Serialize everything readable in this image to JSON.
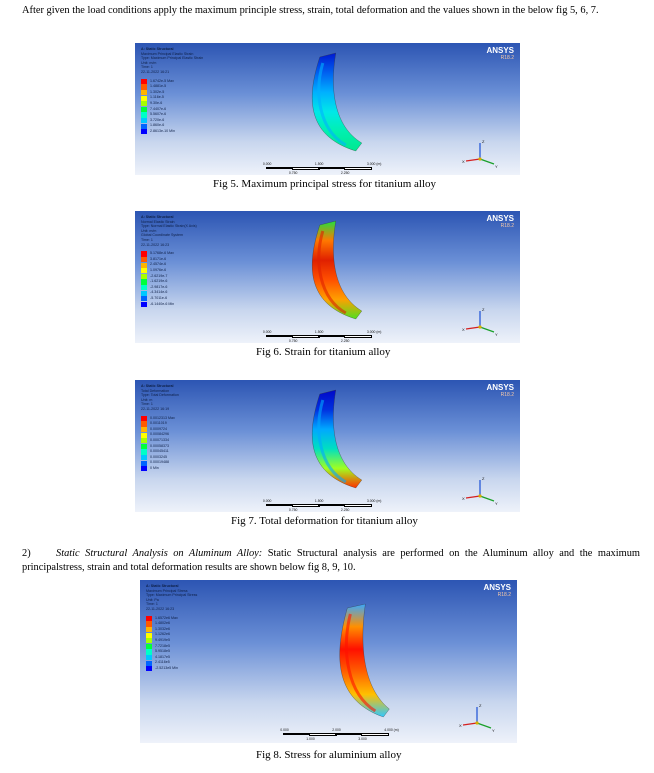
{
  "paragraphs": {
    "intro": "After given the load conditions apply the maximum principle stress, strain, total deformation and the values shown in the below fig 5, 6, 7.",
    "section_number": "2)",
    "section_title": "Static Structural Analysis on Aluminum Alloy:",
    "section_body": " Static Structural analysis are performed on the Aluminum alloy and the maximum principalstress, strain and total deformation results are shown below fig 8, 9, 10."
  },
  "figures": [
    {
      "caption": "Fig 5. Maximum principal stress for titanium alloy",
      "header_title": "A: Static Structural",
      "header_lines": [
        "Maximum Principal Elastic Strain",
        "Type: Maximum Principal Elastic Strain",
        "Unit: m/m",
        "Time: 1",
        "22-11-2022 16:21"
      ],
      "legend_values": [
        "1.6742e-5 Max",
        "1.4881e-5",
        "1.302e-5",
        "1.116e-5",
        "9.30e-6",
        "7.4407e-6",
        "5.5607e-6",
        "3.720e-6",
        "1.860e-6",
        "2.8613e-10 Min"
      ],
      "scale_labels": [
        "0.000",
        "1.500",
        "3.000 (m)",
        "0.750",
        "2.250"
      ],
      "colors": [
        "#ff0000",
        "#ff5a00",
        "#ffb400",
        "#ffff00",
        "#a6ff00",
        "#00ff3c",
        "#00ffc8",
        "#00c8ff",
        "#0064ff",
        "#0000ff"
      ],
      "part_colors": [
        "#0018d0",
        "#0060f0",
        "#00b0ff",
        "#00e8e8",
        "#00f0b0",
        "#00e890"
      ]
    },
    {
      "caption": "Fig 6. Strain for titanium alloy",
      "header_title": "A: Static Structural",
      "header_lines": [
        "Normal Elastic Strain",
        "Type: Normal Elastic Strain(X Axis)",
        "Unit: m/m",
        "Global Coordinate System",
        "Time: 1",
        "22-11-2022 16:23"
      ],
      "legend_values": [
        "5.1768e-6 Max",
        "3.8171e-6",
        "2.4574e-6",
        "1.0976e-6",
        "-2.6219e-7",
        "-1.6219e-6",
        "-2.9817e-6",
        "-4.3414e-6",
        "-5.7011e-6",
        "-6.1440e-6 Min"
      ],
      "scale_labels": [
        "0.000",
        "1.500",
        "3.000 (m)",
        "0.750",
        "2.250"
      ],
      "colors": [
        "#ff0000",
        "#ff5a00",
        "#ffb400",
        "#ffff00",
        "#a6ff00",
        "#00ff3c",
        "#00ffc8",
        "#00c8ff",
        "#0064ff",
        "#0000ff"
      ],
      "part_colors": [
        "#20e040",
        "#ff7800",
        "#e02000",
        "#ff5000",
        "#ffa000",
        "#50e020"
      ]
    },
    {
      "caption": "Fig 7. Total deformation for titanium alloy",
      "header_title": "A: Static Structural",
      "header_lines": [
        "Total Deformation",
        "Type: Total Deformation",
        "Unit: m",
        "Time: 1",
        "22-11-2022 16:19"
      ],
      "legend_values": [
        "0.0012313 Max",
        "0.0011019",
        "0.0009724",
        "0.00084296",
        "0.00071334",
        "0.00058373",
        "0.00045411",
        "0.0003245",
        "0.00019488",
        "0 Min"
      ],
      "scale_labels": [
        "0.000",
        "1.500",
        "3.000 (m)",
        "0.750",
        "2.250"
      ],
      "colors": [
        "#ff0000",
        "#ff5a00",
        "#ffb400",
        "#ffff00",
        "#a6ff00",
        "#00ff3c",
        "#00ffc8",
        "#00c8ff",
        "#0064ff",
        "#0000ff"
      ],
      "part_colors": [
        "#0008c8",
        "#0030e0",
        "#00a8ff",
        "#00e0c0",
        "#a0ff20",
        "#ff3000"
      ]
    },
    {
      "caption": "Fig 8. Stress for aluminium alloy",
      "header_title": "A: Static Structural",
      "header_lines": [
        "Maximum Principal Stress",
        "Type: Maximum Principal Stress",
        "Unit: Pa",
        "Time: 1",
        "22-11-2022 16:23"
      ],
      "legend_values": [
        "1.6572e6 Max",
        "1.4802e6",
        "1.3032e6",
        "1.1262e6",
        "9.4919e5",
        "7.7218e5",
        "5.9518e5",
        "4.1817e5",
        "2.4116e5",
        "-2.5213e5 Min"
      ],
      "scale_labels": [
        "0.000",
        "2.000",
        "4.000 (m)",
        "1.000",
        "3.000"
      ],
      "colors": [
        "#ff0000",
        "#ff5a00",
        "#ffb400",
        "#ffff00",
        "#a6ff00",
        "#00ff3c",
        "#00ffc8",
        "#00c8ff",
        "#0064ff",
        "#0000ff"
      ],
      "part_colors": [
        "#38a8ff",
        "#ff9000",
        "#ff1000",
        "#ff6000",
        "#ffc000",
        "#30c8ff"
      ]
    }
  ],
  "ansys": {
    "brand": "ANSYS",
    "release": "R18.2"
  },
  "triad": {
    "x": "X",
    "y": "Y",
    "z": "Z"
  }
}
